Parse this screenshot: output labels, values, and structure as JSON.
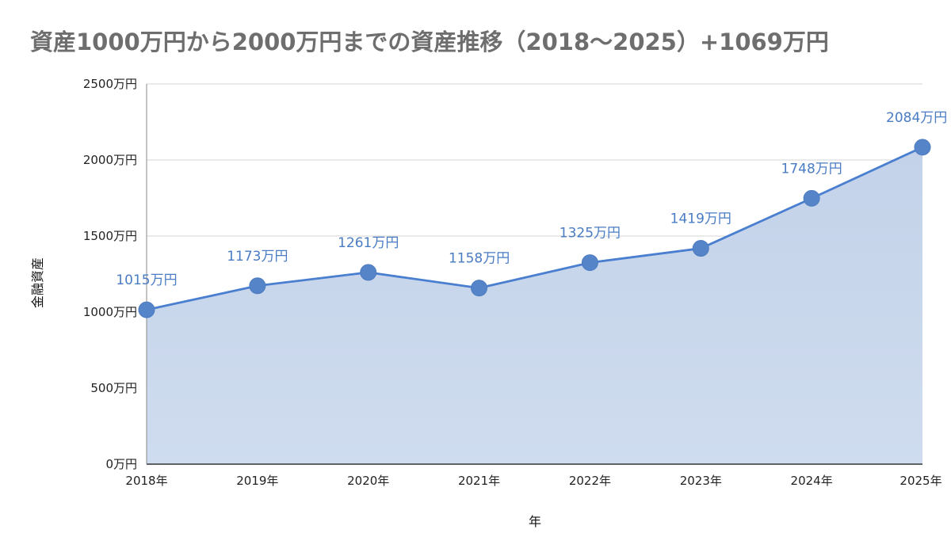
{
  "chart_data": {
    "type": "area",
    "title": "資産1000万円から2000万円までの資産推移（2018〜2025）+1069万円",
    "xlabel": "年",
    "ylabel": "金融資産",
    "categories": [
      "2018年",
      "2019年",
      "2020年",
      "2021年",
      "2022年",
      "2023年",
      "2024年",
      "2025年"
    ],
    "series": [
      {
        "values": [
          1015,
          1173,
          1261,
          1158,
          1325,
          1419,
          1748,
          2084
        ]
      }
    ],
    "data_labels": [
      "1015万円",
      "1173万円",
      "1261万円",
      "1158万円",
      "1325万円",
      "1419万円",
      "1748万円",
      "2084万円"
    ],
    "y_ticks": [
      0,
      500,
      1000,
      1500,
      2000,
      2500
    ],
    "y_tick_labels": [
      "0万円",
      "500万円",
      "1000万円",
      "1500万円",
      "2000万円",
      "2500万円"
    ],
    "ylim": [
      0,
      2500
    ],
    "grid": true,
    "legend": "none",
    "colors": {
      "line": "#4a7fd0",
      "marker": "#5584c8",
      "fill_top": "#c3d2e9",
      "fill_bottom": "#cfdcef",
      "label": "#4a7cc4",
      "grid": "#d4d4d4"
    }
  }
}
